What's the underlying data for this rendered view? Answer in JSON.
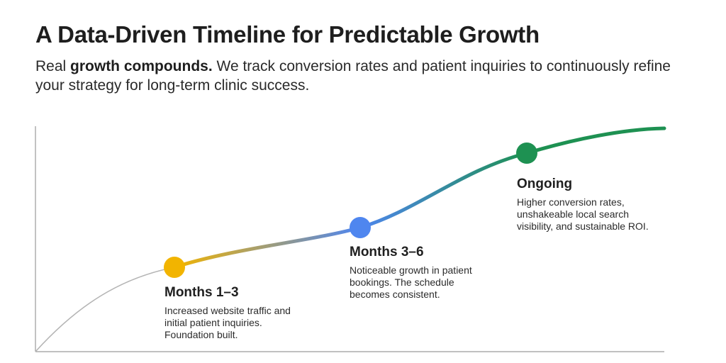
{
  "header": {
    "title": "A Data-Driven Timeline for Predictable Growth",
    "subtitle_lead": "Real ",
    "subtitle_bold": "growth compounds.",
    "subtitle_rest": " We track conversion rates and patient inquiries to continuously refine your strategy for long-term clinic success."
  },
  "milestones": [
    {
      "label": "Months 1–3",
      "description": "Increased website traffic and\ninitial patient inquiries.\nFoundation built.",
      "color": "#F2B400"
    },
    {
      "label": "Months 3–6",
      "description": "Noticeable growth in patient\nbookings. The schedule\nbecomes consistent.",
      "color": "#4F86EF"
    },
    {
      "label": "Ongoing",
      "description": "Higher conversion rates,\nunshakeable local search\nvisibility, and sustainable ROI.",
      "color": "#1E9152"
    }
  ],
  "colors": {
    "axis": "#9a9a9a",
    "early_curve": "#b4b4b4",
    "yellow": "#F2B400",
    "blue": "#4F86EF",
    "green": "#1E9152"
  }
}
